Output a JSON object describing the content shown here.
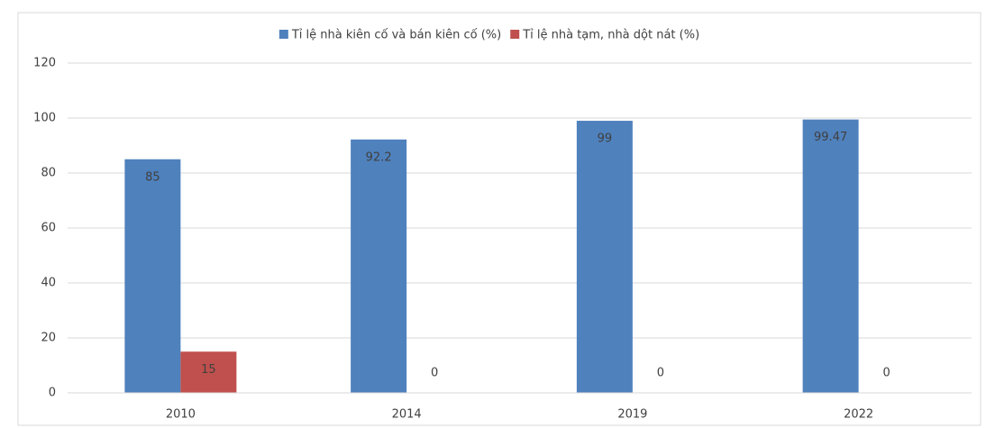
{
  "chart_data": {
    "type": "bar",
    "categories": [
      "2010",
      "2014",
      "2019",
      "2022"
    ],
    "series": [
      {
        "name": "Tỉ lệ nhà kiên cố và bán kiên cố (%)",
        "color": "#4f81bd",
        "values": [
          85,
          92.2,
          99,
          99.47
        ]
      },
      {
        "name": "Tỉ lệ nhà tạm, nhà dột nát (%)",
        "color": "#c0504d",
        "values": [
          15,
          0,
          0,
          0
        ]
      }
    ],
    "ylim": [
      0,
      120
    ],
    "yticks": [
      0,
      20,
      40,
      60,
      80,
      100,
      120
    ],
    "grid": true,
    "legend": "top"
  }
}
